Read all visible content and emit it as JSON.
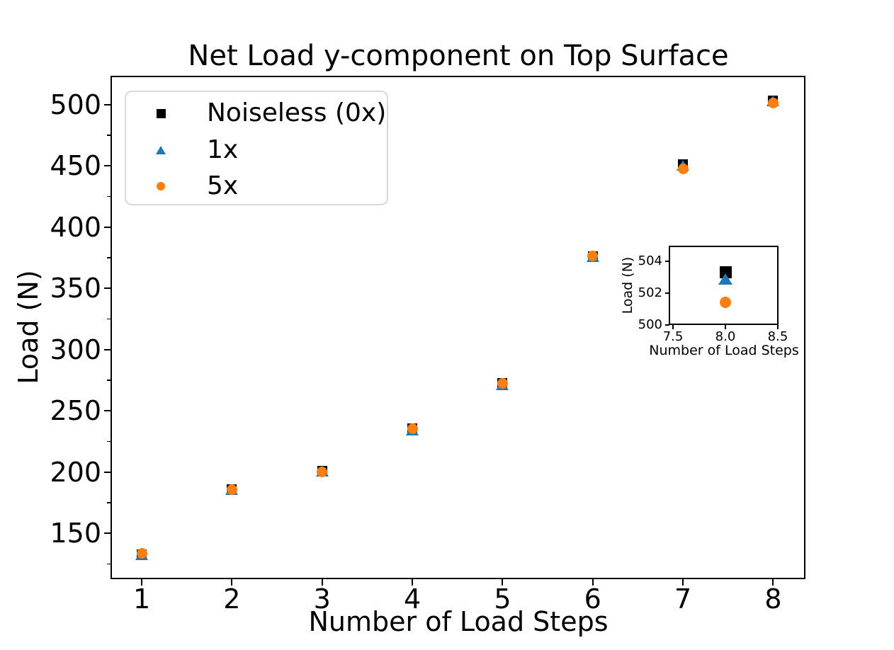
{
  "figure": {
    "background": "#ffffff",
    "text_color": "#000000"
  },
  "chart_data": {
    "type": "scatter",
    "title": "Net Load y-component on Top Surface",
    "xlabel": "Number of Load Steps",
    "ylabel": "Load (N)",
    "grid": false,
    "legend_position": "upper left",
    "xlim": [
      0.662,
      8.35
    ],
    "ylim": [
      113.2,
      523.1
    ],
    "xticks": [
      1,
      2,
      3,
      4,
      5,
      6,
      7,
      8
    ],
    "yticks": [
      150,
      200,
      250,
      300,
      350,
      400,
      450,
      500
    ],
    "yticks_minor": [
      125,
      175,
      225,
      275,
      325,
      375,
      425,
      475
    ],
    "x": [
      1,
      2,
      3,
      4,
      5,
      6,
      7,
      8
    ],
    "series": [
      {
        "name": "Noiseless (0x)",
        "marker": "square",
        "color": "#000000",
        "values": [
          133.0,
          186.0,
          201.0,
          236.0,
          272.5,
          376.5,
          451.5,
          503.3
        ]
      },
      {
        "name": "1x",
        "marker": "triangle",
        "color": "#1f77b4",
        "values": [
          132.5,
          185.5,
          200.5,
          234.5,
          271.5,
          376.0,
          450.5,
          502.9
        ]
      },
      {
        "name": "5x",
        "marker": "circle",
        "color": "#ff7f0e",
        "values": [
          133.5,
          186.0,
          200.0,
          235.5,
          272.5,
          376.5,
          447.5,
          501.4
        ]
      }
    ],
    "inset": {
      "xlabel": "Number of Load Steps",
      "ylabel": "Load (N)",
      "xlim": [
        7.466,
        8.5
      ],
      "ylim": [
        500,
        504.93
      ],
      "xtick_labels": [
        "7.5",
        "8.0",
        "8.5"
      ],
      "xtick_values": [
        7.5,
        8.0,
        8.5
      ],
      "yticks": [
        500,
        502,
        504
      ],
      "x": 8,
      "points": [
        {
          "series": "Noiseless (0x)",
          "value": 503.3
        },
        {
          "series": "1x",
          "value": 502.9
        },
        {
          "series": "5x",
          "value": 501.4
        }
      ]
    }
  }
}
